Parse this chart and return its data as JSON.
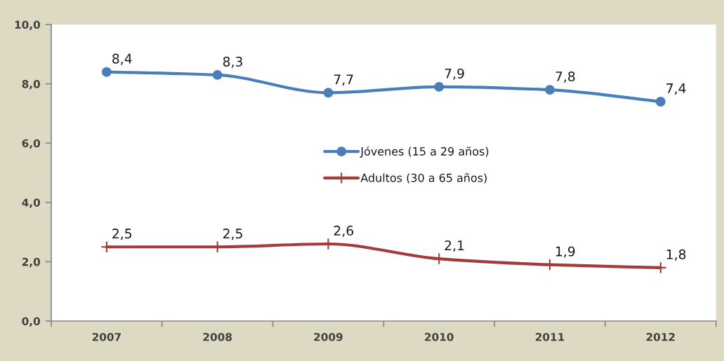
{
  "chart_data": {
    "type": "line",
    "categories": [
      "2007",
      "2008",
      "2009",
      "2010",
      "2011",
      "2012"
    ],
    "series": [
      {
        "name": "Jóvenes (15 a 29 años)",
        "color": "#4a7ebb",
        "marker": "circle",
        "values": [
          8.4,
          8.3,
          7.7,
          7.9,
          7.8,
          7.4
        ],
        "value_labels": [
          "8,4",
          "8,3",
          "7,7",
          "7,9",
          "7,8",
          "7,4"
        ]
      },
      {
        "name": "Adultos (30 a 65 años)",
        "color": "#a33b3b",
        "marker": "cross",
        "values": [
          2.5,
          2.5,
          2.6,
          2.1,
          1.9,
          1.8
        ],
        "value_labels": [
          "2,5",
          "2,5",
          "2,6",
          "2,1",
          "1,9",
          "1,8"
        ]
      }
    ],
    "ylim": [
      0,
      10
    ],
    "yticks": [
      {
        "value": 0,
        "label": "0,0"
      },
      {
        "value": 2,
        "label": "2,0"
      },
      {
        "value": 4,
        "label": "4,0"
      },
      {
        "value": 6,
        "label": "6,0"
      },
      {
        "value": 8,
        "label": "8,0"
      },
      {
        "value": 10,
        "label": "10,0"
      }
    ],
    "legend": "center",
    "grid": false
  }
}
